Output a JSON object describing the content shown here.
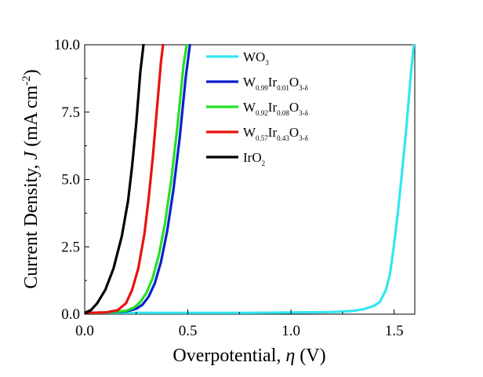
{
  "chart_data": {
    "type": "line",
    "title": "",
    "xlabel": {
      "text": "Overpotential, ",
      "symbol": "η",
      "unit": " (V)"
    },
    "ylabel": {
      "text": "Current Density, ",
      "symbol": "J",
      "unit_pre": " (mA cm",
      "unit_sup": "-2",
      "unit_post": ")"
    },
    "xlim": [
      0.0,
      1.6
    ],
    "ylim": [
      0.0,
      10.0
    ],
    "x_ticks": [
      {
        "value": 0.0,
        "label": "0.0"
      },
      {
        "value": 0.5,
        "label": "0.5"
      },
      {
        "value": 1.0,
        "label": "1.0"
      },
      {
        "value": 1.5,
        "label": "1.5"
      }
    ],
    "y_ticks": [
      {
        "value": 0.0,
        "label": "0.0"
      },
      {
        "value": 2.5,
        "label": "2.5"
      },
      {
        "value": 5.0,
        "label": "5.0"
      },
      {
        "value": 7.5,
        "label": "7.5"
      },
      {
        "value": 10.0,
        "label": "10.0"
      }
    ],
    "grid": false,
    "legend_position": "top-right",
    "series": [
      {
        "name": "WO3",
        "legend_parts": [
          {
            "t": "WO",
            "sub": false
          },
          {
            "t": "3",
            "sub": true
          }
        ],
        "color": "#33e6f0",
        "x": [
          0.0,
          0.8,
          1.0,
          1.2,
          1.3,
          1.35,
          1.4,
          1.43,
          1.46,
          1.48,
          1.5,
          1.52,
          1.54,
          1.56,
          1.58,
          1.595
        ],
        "y": [
          0.05,
          0.05,
          0.06,
          0.08,
          0.12,
          0.18,
          0.3,
          0.45,
          0.9,
          1.5,
          2.6,
          3.9,
          5.4,
          7.0,
          8.8,
          10.0
        ]
      },
      {
        "name": "W0.99Ir0.01O3-δ",
        "legend_parts": [
          {
            "t": "W",
            "sub": false
          },
          {
            "t": "0.99",
            "sub": true
          },
          {
            "t": "Ir",
            "sub": false
          },
          {
            "t": "0.01",
            "sub": true
          },
          {
            "t": "O",
            "sub": false
          },
          {
            "t": "3-δ",
            "sub": true
          }
        ],
        "color": "#0a1fd0",
        "x": [
          0.0,
          0.1,
          0.2,
          0.25,
          0.28,
          0.31,
          0.34,
          0.37,
          0.4,
          0.43,
          0.46,
          0.49,
          0.51
        ],
        "y": [
          0.05,
          0.06,
          0.1,
          0.2,
          0.35,
          0.65,
          1.15,
          1.95,
          3.1,
          4.6,
          6.5,
          8.8,
          10.0
        ]
      },
      {
        "name": "W0.92Ir0.08O3-δ",
        "legend_parts": [
          {
            "t": "W",
            "sub": false
          },
          {
            "t": "0.92",
            "sub": true
          },
          {
            "t": "Ir",
            "sub": false
          },
          {
            "t": "0.08",
            "sub": true
          },
          {
            "t": "O",
            "sub": false
          },
          {
            "t": "3-δ",
            "sub": true
          }
        ],
        "color": "#22e022",
        "x": [
          0.0,
          0.1,
          0.2,
          0.24,
          0.27,
          0.3,
          0.33,
          0.36,
          0.39,
          0.42,
          0.45,
          0.48,
          0.495
        ],
        "y": [
          0.05,
          0.06,
          0.12,
          0.25,
          0.45,
          0.8,
          1.35,
          2.2,
          3.4,
          5.0,
          7.0,
          9.3,
          10.0
        ]
      },
      {
        "name": "W0.57Ir0.43O3-δ",
        "legend_parts": [
          {
            "t": "W",
            "sub": false
          },
          {
            "t": "0.57",
            "sub": true
          },
          {
            "t": "Ir",
            "sub": false
          },
          {
            "t": "0.43",
            "sub": true
          },
          {
            "t": "O",
            "sub": false
          },
          {
            "t": "3-δ",
            "sub": true
          }
        ],
        "color": "#e8120e",
        "x": [
          0.0,
          0.1,
          0.16,
          0.2,
          0.23,
          0.26,
          0.29,
          0.31,
          0.33,
          0.35,
          0.37,
          0.38
        ],
        "y": [
          0.05,
          0.06,
          0.15,
          0.4,
          0.9,
          1.7,
          3.0,
          4.3,
          5.8,
          7.6,
          9.4,
          10.0
        ]
      },
      {
        "name": "IrO2",
        "legend_parts": [
          {
            "t": "IrO",
            "sub": false
          },
          {
            "t": "2",
            "sub": true
          }
        ],
        "color": "#000000",
        "x": [
          0.0,
          0.03,
          0.06,
          0.1,
          0.14,
          0.18,
          0.21,
          0.23,
          0.25,
          0.27,
          0.285
        ],
        "y": [
          0.05,
          0.15,
          0.4,
          0.9,
          1.7,
          2.9,
          4.2,
          5.5,
          7.1,
          9.0,
          10.0
        ]
      }
    ]
  }
}
